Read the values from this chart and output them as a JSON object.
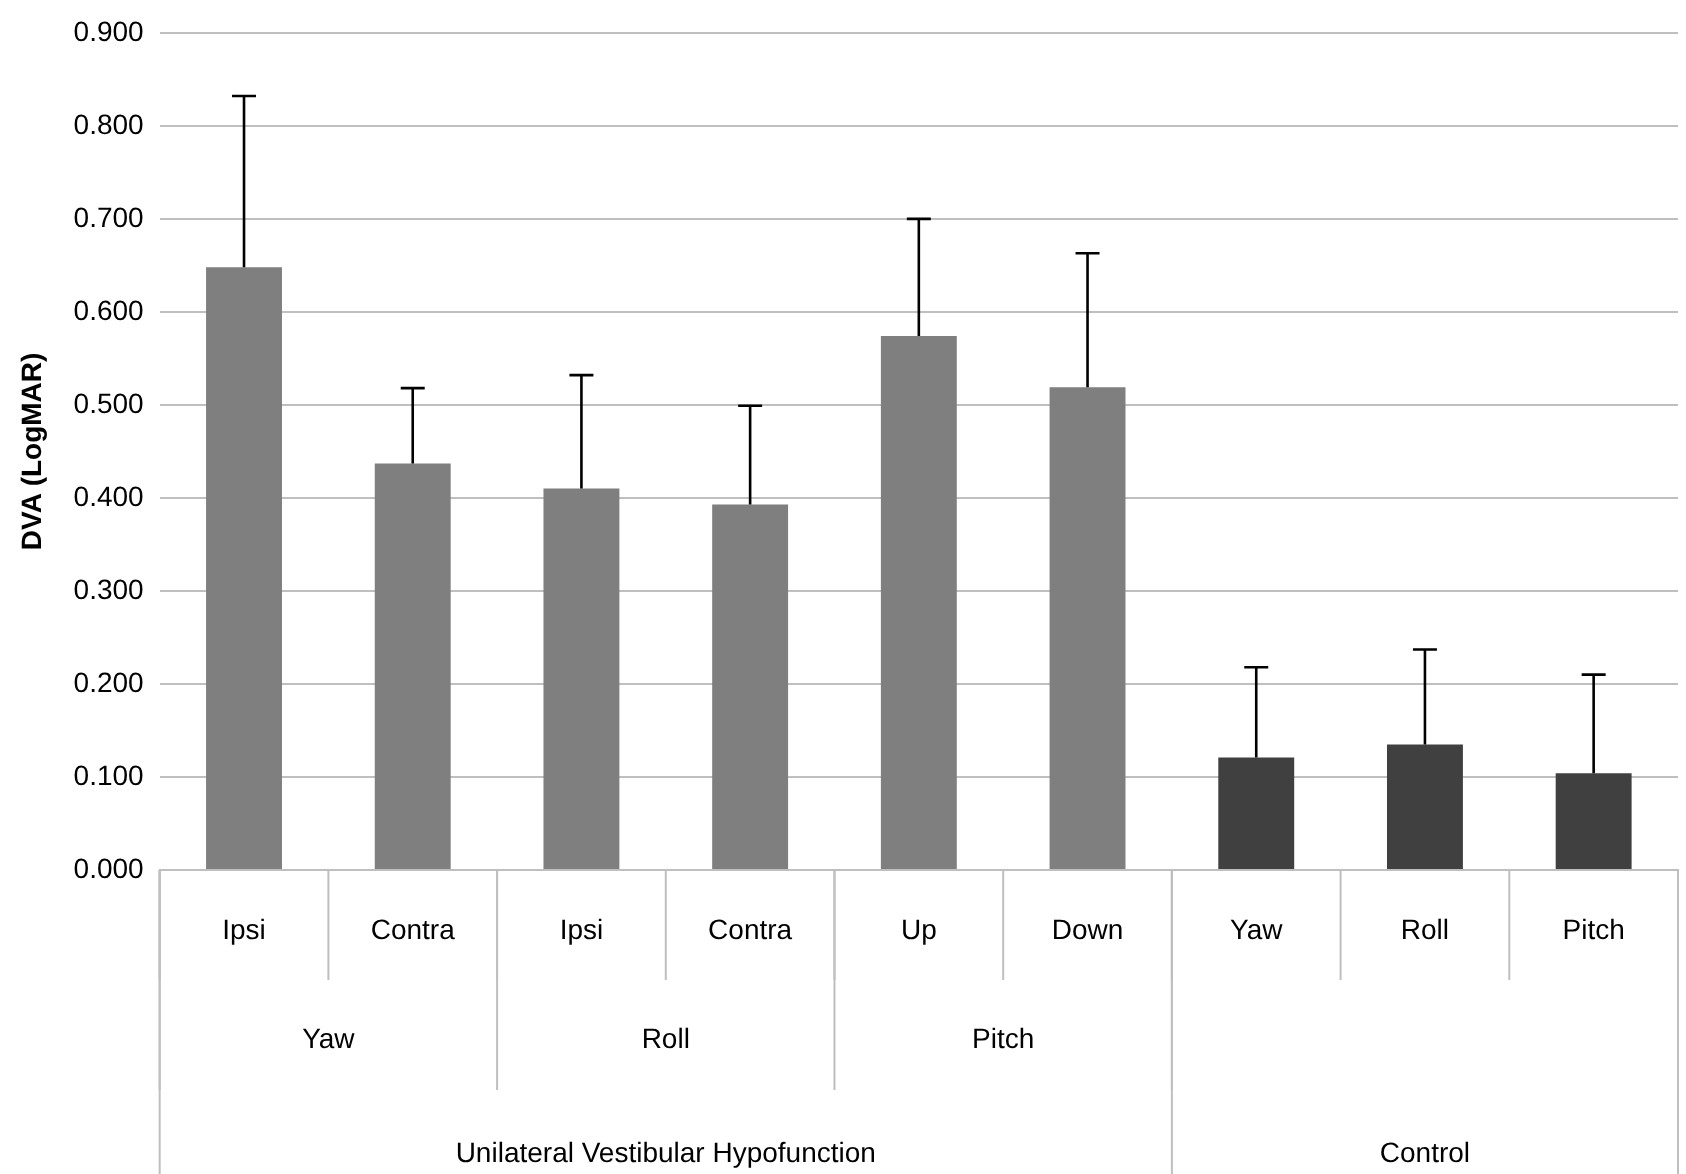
{
  "chart_data": {
    "type": "bar",
    "ylabel": "DVA (LogMAR)",
    "categories": [
      "Ipsi",
      "Contra",
      "Ipsi",
      "Contra",
      "Up",
      "Down",
      "Yaw",
      "Roll",
      "Pitch"
    ],
    "values": [
      0.648,
      0.437,
      0.41,
      0.393,
      0.574,
      0.519,
      0.121,
      0.135,
      0.104
    ],
    "colors": [
      "#7f7f7f",
      "#7f7f7f",
      "#7f7f7f",
      "#7f7f7f",
      "#7f7f7f",
      "#7f7f7f",
      "#404040",
      "#404040",
      "#404040"
    ],
    "errors": [
      [
        0.648,
        0.832
      ],
      [
        0.437,
        0.518
      ],
      [
        0.41,
        0.532
      ],
      [
        0.393,
        0.499
      ],
      [
        0.574,
        0.7
      ],
      [
        0.519,
        0.663
      ],
      [
        0.121,
        0.218
      ],
      [
        0.135,
        0.237
      ],
      [
        0.104,
        0.21
      ]
    ],
    "annotations": [
      "Yaw",
      "Roll",
      "Pitch",
      "Unilateral Vestibular Hypofunction",
      "Control"
    ],
    "ylim": [
      0,
      0.9
    ],
    "yticks": [
      {
        "value": 0,
        "label": "0.000"
      },
      {
        "value": 0.1,
        "label": "0.100"
      },
      {
        "value": 0.2,
        "label": "0.200"
      },
      {
        "value": 0.3,
        "label": "0.300"
      },
      {
        "value": 0.4,
        "label": "0.400"
      },
      {
        "value": 0.5,
        "label": "0.500"
      },
      {
        "value": 0.6,
        "label": "0.600"
      },
      {
        "value": 0.7,
        "label": "0.700"
      },
      {
        "value": 0.8,
        "label": "0.800"
      },
      {
        "value": 0.9,
        "label": "0.900"
      }
    ],
    "grid": "y",
    "legend": false
  }
}
